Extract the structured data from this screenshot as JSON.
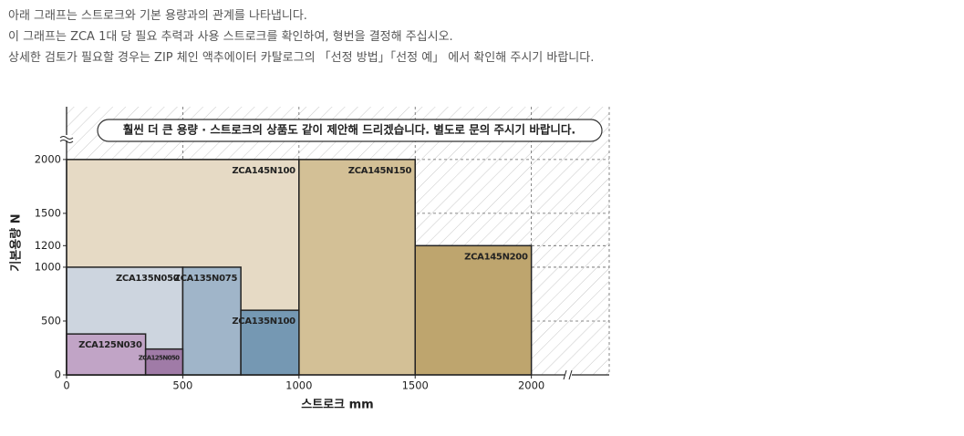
{
  "intro": [
    "아래 그래프는 스트로크와 기본 용량과의 관계를 나타냅니다.",
    "이 그래프는 ZCA 1대 당 필요 추력과 사용 스트로크를 확인하여, 형번을 결정해 주십시오.",
    "상세한 검토가 필요할 경우는 ZIP 체인 액추에이터 카탈로그의 「선정 방법」「선정 예」 에서 확인해 주시기 바랍니다."
  ],
  "chart_data": {
    "type": "range-bar",
    "annotation": "훨씬 더 큰 용량 · 스트로크의 상품도 같이 제안해 드리겠습니다. 별도로 문의 주시기 바랍니다.",
    "x_label": "스트로크 mm",
    "y_label": "기본용량 N",
    "xlim": [
      0,
      2335
    ],
    "ylim": [
      0,
      2490
    ],
    "xticks": [
      0,
      500,
      1000,
      1500,
      2000
    ],
    "yticks": [
      0,
      500,
      1000,
      1200,
      1500,
      2000
    ],
    "grid": true,
    "series": [
      {
        "name": "ZCA145N100",
        "color": "#e6dac5",
        "x_start": 0,
        "x_end": 1000,
        "value": 2000
      },
      {
        "name": "ZCA145N150",
        "color": "#d3c096",
        "x_start": 1000,
        "x_end": 1500,
        "value": 2000
      },
      {
        "name": "ZCA145N200",
        "color": "#bea56e",
        "x_start": 1500,
        "x_end": 2000,
        "value": 1200
      },
      {
        "name": "ZCA135N050",
        "color": "#cdd5df",
        "x_start": 0,
        "x_end": 500,
        "value": 1000
      },
      {
        "name": "ZCA135N075",
        "color": "#a0b5c9",
        "x_start": 500,
        "x_end": 750,
        "value": 1000
      },
      {
        "name": "ZCA135N100",
        "color": "#7598b3",
        "x_start": 750,
        "x_end": 1000,
        "value": 600
      },
      {
        "name": "ZCA125N030",
        "color": "#c1a4c6",
        "x_start": 0,
        "x_end": 340,
        "value": 380
      },
      {
        "name": "ZCA125N050",
        "color": "#a07ba7",
        "x_start": 340,
        "x_end": 500,
        "value": 240
      }
    ]
  }
}
